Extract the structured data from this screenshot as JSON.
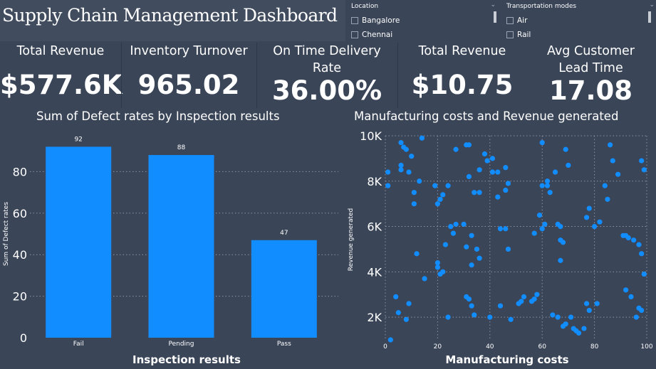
{
  "dashboard": {
    "title": "Supply Chain Management Dashboard"
  },
  "slicers": {
    "location": {
      "header": "Location",
      "options": [
        "Bangalore",
        "Chennai"
      ]
    },
    "transport": {
      "header": "Transportation modes",
      "options": [
        "Air",
        "Rail"
      ]
    }
  },
  "kpis": [
    {
      "label": "Total Revenue",
      "value": "$577.6K"
    },
    {
      "label": "Inventory Turnover",
      "value": "965.02"
    },
    {
      "label": "On Time Delivery Rate",
      "value": "36.00%"
    },
    {
      "label": "Total Revenue",
      "value": "$10.75"
    },
    {
      "label": "Avg Customer Lead Time",
      "value": "17.08"
    }
  ],
  "colors": {
    "accent": "#118dff",
    "background": "#3a4558"
  },
  "chart_data": [
    {
      "type": "bar",
      "title": "Sum of Defect rates by Inspection results",
      "xlabel": "Inspection results",
      "ylabel": "Sum of Defect rates",
      "categories": [
        "Fail",
        "Pending",
        "Pass"
      ],
      "values": [
        92,
        88,
        47
      ],
      "ylim": [
        0,
        100
      ],
      "yticks": [
        0,
        20,
        40,
        60,
        80
      ],
      "grid": true
    },
    {
      "type": "scatter",
      "title": "Manufacturing costs and Revenue generated",
      "xlabel": "Manufacturing costs",
      "ylabel": "Revenue generated",
      "xlim": [
        0,
        100
      ],
      "ylim": [
        1000,
        10000
      ],
      "xticks": [
        0,
        20,
        40,
        60,
        80,
        100
      ],
      "xtick_labels": [
        "0",
        "20",
        "40",
        "60",
        "80",
        "100"
      ],
      "yticks": [
        2000,
        4000,
        6000,
        8000,
        10000
      ],
      "ytick_labels": [
        "2K",
        "4K",
        "6K",
        "8K",
        "10K"
      ],
      "grid": true,
      "points": [
        [
          1,
          7800
        ],
        [
          1,
          8400
        ],
        [
          6,
          8500
        ],
        [
          6,
          8700
        ],
        [
          6,
          9700
        ],
        [
          7,
          9500
        ],
        [
          8,
          9400
        ],
        [
          9,
          8400
        ],
        [
          10,
          9100
        ],
        [
          11,
          7500
        ],
        [
          11,
          7000
        ],
        [
          13,
          8000
        ],
        [
          14,
          9900
        ],
        [
          19,
          7800
        ],
        [
          20,
          7000
        ],
        [
          21,
          7200
        ],
        [
          22,
          7400
        ],
        [
          24,
          7800
        ],
        [
          27,
          9400
        ],
        [
          31,
          9600
        ],
        [
          32,
          9600
        ],
        [
          32,
          8200
        ],
        [
          34,
          7500
        ],
        [
          36,
          8500
        ],
        [
          38,
          9200
        ],
        [
          39,
          8900
        ],
        [
          41,
          9000
        ],
        [
          41,
          8400
        ],
        [
          43,
          8400
        ],
        [
          46,
          8600
        ],
        [
          46,
          7600
        ],
        [
          47,
          7900
        ],
        [
          43,
          7300
        ],
        [
          36,
          7500
        ],
        [
          23,
          5200
        ],
        [
          25,
          6000
        ],
        [
          26,
          5700
        ],
        [
          27,
          6100
        ],
        [
          30,
          6100
        ],
        [
          31,
          5100
        ],
        [
          33,
          5600
        ],
        [
          33,
          4300
        ],
        [
          35,
          5000
        ],
        [
          36,
          4600
        ],
        [
          44,
          5900
        ],
        [
          46,
          5900
        ],
        [
          47,
          5000
        ],
        [
          12,
          4800
        ],
        [
          15,
          3700
        ],
        [
          20,
          4400
        ],
        [
          20,
          4200
        ],
        [
          21,
          3900
        ],
        [
          22,
          4000
        ],
        [
          24,
          2000
        ],
        [
          4,
          2900
        ],
        [
          5,
          2200
        ],
        [
          8,
          1900
        ],
        [
          9,
          2600
        ],
        [
          2,
          1000
        ],
        [
          31,
          2900
        ],
        [
          32,
          2800
        ],
        [
          33,
          2500
        ],
        [
          34,
          2100
        ],
        [
          40,
          2000
        ],
        [
          44,
          2500
        ],
        [
          48,
          1900
        ],
        [
          51,
          2600
        ],
        [
          52,
          2700
        ],
        [
          53,
          2900
        ],
        [
          56,
          2700
        ],
        [
          57,
          2800
        ],
        [
          58,
          3000
        ],
        [
          57,
          5700
        ],
        [
          59,
          6500
        ],
        [
          60,
          5900
        ],
        [
          61,
          6100
        ],
        [
          60,
          7800
        ],
        [
          62,
          8000
        ],
        [
          62,
          7800
        ],
        [
          63,
          7500
        ],
        [
          60,
          9700
        ],
        [
          65,
          8400
        ],
        [
          69,
          9400
        ],
        [
          70,
          8700
        ],
        [
          66,
          6100
        ],
        [
          67,
          6000
        ],
        [
          67,
          5400
        ],
        [
          68,
          5300
        ],
        [
          67,
          4500
        ],
        [
          64,
          2100
        ],
        [
          66,
          2000
        ],
        [
          68,
          1600
        ],
        [
          69,
          1700
        ],
        [
          71,
          2000
        ],
        [
          72,
          1500
        ],
        [
          73,
          1400
        ],
        [
          74,
          1300
        ],
        [
          76,
          1500
        ],
        [
          77,
          2600
        ],
        [
          78,
          2300
        ],
        [
          81,
          2600
        ],
        [
          77,
          6400
        ],
        [
          78,
          6800
        ],
        [
          80,
          6000
        ],
        [
          82,
          6200
        ],
        [
          84,
          7800
        ],
        [
          85,
          7200
        ],
        [
          86,
          9600
        ],
        [
          87,
          8900
        ],
        [
          89,
          8300
        ],
        [
          91,
          5600
        ],
        [
          92,
          5600
        ],
        [
          93,
          5500
        ],
        [
          95,
          5400
        ],
        [
          97,
          5200
        ],
        [
          98,
          4800
        ],
        [
          99,
          3900
        ],
        [
          98,
          8900
        ],
        [
          99,
          8500
        ],
        [
          97,
          2400
        ],
        [
          98,
          2300
        ],
        [
          96,
          2000
        ],
        [
          94,
          2900
        ],
        [
          92,
          3200
        ]
      ]
    }
  ]
}
